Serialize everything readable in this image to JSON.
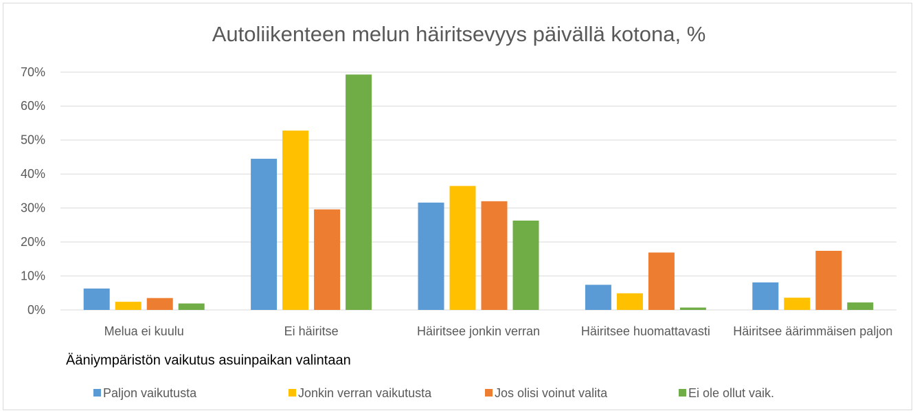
{
  "chart_data": {
    "type": "bar",
    "title": "Autoliikenteen melun häiritsevyys päivällä kotona, %",
    "categories": [
      "Melua ei kuulu",
      "Ei häiritse",
      "Häiritsee jonkin verran",
      "Häiritsee huomattavasti",
      "Häiritsee äärimmäisen paljon"
    ],
    "legend_title": "Ääniympäristön vaikutus asuinpaikan valintaan",
    "series": [
      {
        "name": "Paljon vaikutusta",
        "color": "#5b9bd5",
        "values": [
          6.3,
          44.5,
          31.6,
          7.4,
          8.1
        ]
      },
      {
        "name": "Jonkin verran vaikutusta",
        "color": "#ffc000",
        "values": [
          2.4,
          52.8,
          36.5,
          4.9,
          3.6
        ]
      },
      {
        "name": "Jos olisi voinut valita",
        "color": "#ed7d31",
        "values": [
          3.5,
          29.6,
          32.0,
          16.9,
          17.4
        ]
      },
      {
        "name": "Ei ole ollut vaik.",
        "color": "#70ad47",
        "values": [
          1.9,
          69.3,
          26.3,
          0.7,
          2.2
        ]
      }
    ],
    "ylim": [
      0,
      70
    ],
    "yticks": [
      {
        "value": 0,
        "label": "0%"
      },
      {
        "value": 10,
        "label": "10%"
      },
      {
        "value": 20,
        "label": "20%"
      },
      {
        "value": 30,
        "label": "30%"
      },
      {
        "value": 40,
        "label": "40%"
      },
      {
        "value": 50,
        "label": "50%"
      },
      {
        "value": 60,
        "label": "60%"
      },
      {
        "value": 70,
        "label": "70%"
      }
    ],
    "grid": true,
    "legend": "bottom"
  }
}
